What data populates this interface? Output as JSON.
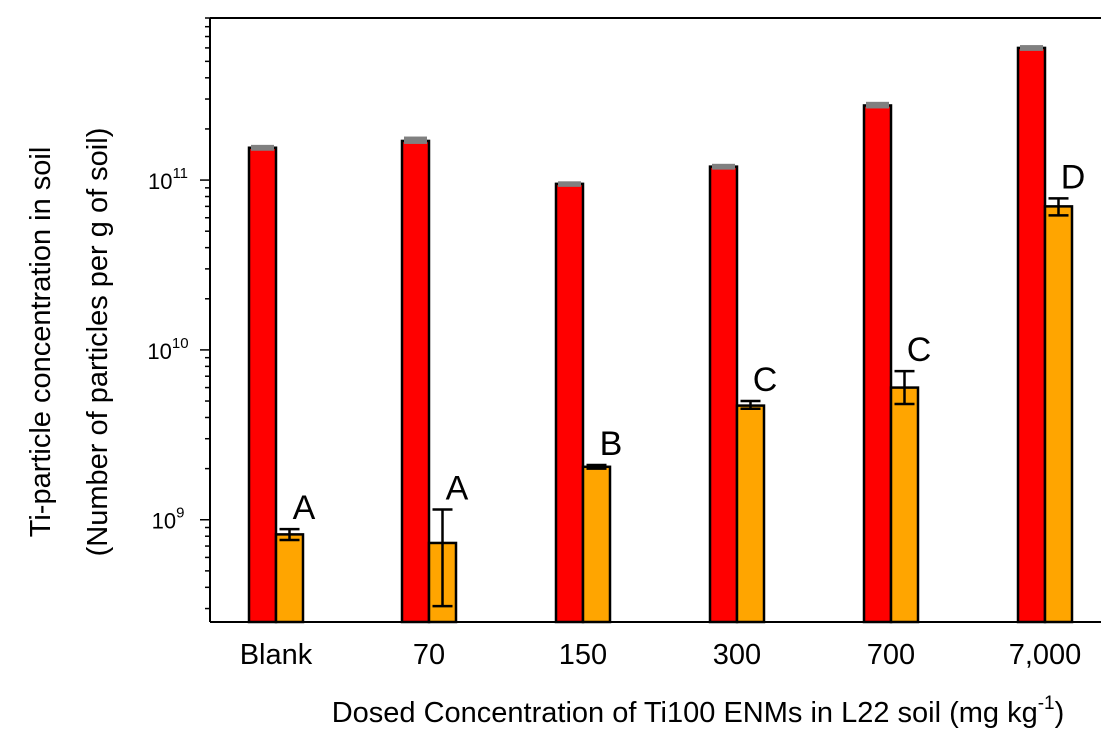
{
  "chart_data": {
    "type": "bar",
    "title": "",
    "xlabel": "Dosed Concentration of Ti100 ENMs in L22 soil (mg kg",
    "xlabel_superscript": "-1",
    "xlabel_suffix": ")",
    "ylabel_line1": "Ti-particle concentration in soil",
    "ylabel_line2": "(Number of particles per g of soil)",
    "y_scale": "log",
    "ylim": [
      250000000,
      900000000000
    ],
    "y_ticks": [
      {
        "base": "10",
        "exp": "9",
        "value": 1000000000
      },
      {
        "base": "10",
        "exp": "10",
        "value": 10000000000
      },
      {
        "base": "10",
        "exp": "11",
        "value": 100000000000
      }
    ],
    "categories": [
      "Blank",
      "70",
      "150",
      "300",
      "700",
      "7,000"
    ],
    "colors": {
      "series_a": "#ff0000",
      "series_b": "#ffa500",
      "error_cap_a": "#808080",
      "outline": "#000000"
    },
    "series": [
      {
        "values": [
          155000000000,
          170000000000,
          95000000000,
          120000000000,
          275000000000,
          600000000000
        ],
        "error": [
          4000000000,
          8000000000,
          2000000000,
          3000000000,
          10000000000,
          15000000000
        ]
      },
      {
        "values": [
          820000000,
          730000000,
          2050000000,
          4700000000,
          6000000000,
          70000000000
        ],
        "error_low": [
          760000000,
          310000000,
          2000000000,
          4500000000,
          4800000000,
          62000000000
        ],
        "error_high": [
          880000000,
          1150000000,
          2100000000,
          5000000000,
          7500000000,
          78000000000
        ],
        "labels": [
          "A",
          "A",
          "B",
          "C",
          "C",
          "D"
        ]
      }
    ]
  }
}
